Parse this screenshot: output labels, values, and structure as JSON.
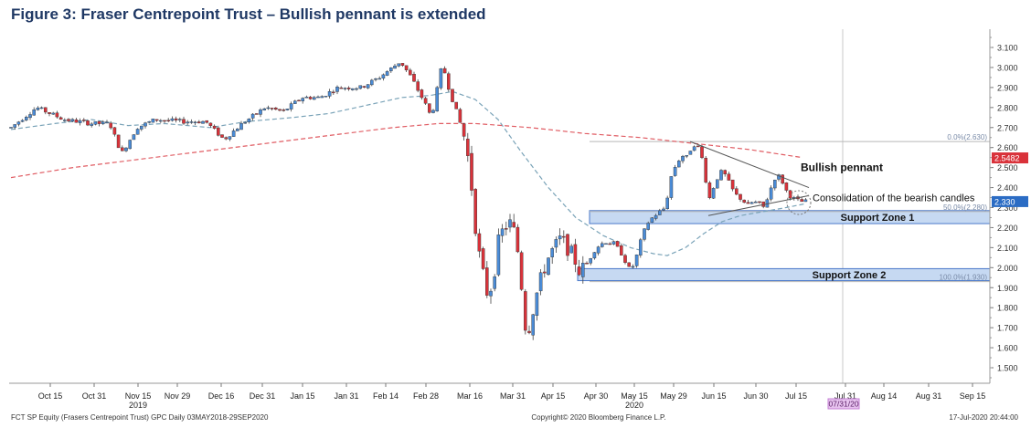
{
  "title": "Figure 3: Fraser Centrepoint Trust – Bullish pennant is extended",
  "colors": {
    "up": "#4a8bd6",
    "down": "#d9323a",
    "ma_short": "#7aa3b8",
    "ma_long": "#e05c63",
    "zone_fill": "#c6d9f2",
    "zone_edge": "#4a78c9",
    "price_tag": "#d9323a",
    "current_tag": "#2b6cc4",
    "date_tag": "#c67fd6"
  },
  "chart_data": {
    "type": "candlestick",
    "ylim": [
      1.4,
      3.18
    ],
    "y_ticks": [
      "3.100",
      "3.000",
      "2.900",
      "2.800",
      "2.700",
      "2.600",
      "2.500",
      "2.400",
      "2.300",
      "2.200",
      "2.100",
      "2.000",
      "1.900",
      "1.800",
      "1.700",
      "1.600",
      "1.500"
    ],
    "x_ticks": [
      "Oct 15",
      "Oct 31",
      "Nov 15",
      "Nov 29",
      "Dec 16",
      "Dec 31",
      "Jan 15",
      "Jan 31",
      "Feb 14",
      "Feb 28",
      "Mar 16",
      "Mar 31",
      "Apr 15",
      "Apr 30",
      "May 15",
      "May 29",
      "Jun 15",
      "Jun 30",
      "Jul 15",
      "Jul 31",
      "Aug 14",
      "Aug 31",
      "Sep 15"
    ],
    "year_labels": [
      {
        "label": "2019",
        "under": "Nov 15"
      },
      {
        "label": "2020",
        "under": "May 15"
      }
    ],
    "price_tags": {
      "ma_long_last": "2.5482",
      "last_price": "2.330"
    },
    "date_tag": "07/31/20",
    "fib_levels": [
      {
        "label": "0.0%(2.630)",
        "value": 2.63
      },
      {
        "label": "50.0%(2.280)",
        "value": 2.28
      },
      {
        "label": "100.0%(1.930)",
        "value": 1.93
      }
    ],
    "support_zones": [
      {
        "label": "Support Zone 1",
        "low": 2.22,
        "high": 2.285
      },
      {
        "label": "Support Zone 2",
        "low": 1.935,
        "high": 1.995
      }
    ],
    "annotations": [
      {
        "label": "Bullish pennant"
      },
      {
        "label": "Consolidation of the bearish candles"
      }
    ],
    "pennant": {
      "top": [
        [
          2.63,
          0
        ],
        [
          2.4,
          1
        ]
      ],
      "bottom": [
        [
          2.26,
          0
        ],
        [
          2.36,
          1
        ]
      ]
    },
    "series_close_approx": [
      2.7,
      2.75,
      2.8,
      2.78,
      2.75,
      2.72,
      2.7,
      2.6,
      2.75,
      2.78,
      2.75,
      2.73,
      2.75,
      2.7,
      2.72,
      2.8,
      2.85,
      2.88,
      2.92,
      2.9,
      2.92,
      2.95,
      3.0,
      3.05,
      2.95,
      2.9,
      2.75,
      3.05,
      2.85,
      2.7,
      2.4,
      2.0,
      1.8,
      2.2,
      2.3,
      1.65,
      1.8,
      2.0,
      2.15,
      2.05,
      2.15,
      2.1,
      2.0,
      2.2,
      2.3,
      2.5,
      2.6,
      2.4,
      2.45,
      2.35,
      2.38,
      2.4,
      2.33
    ],
    "ma_short_approx": [
      2.7,
      2.72,
      2.73,
      2.72,
      2.7,
      2.72,
      2.75,
      2.78,
      2.82,
      2.85,
      2.88,
      2.8,
      2.55,
      2.3,
      2.1,
      2.05,
      2.1,
      2.15,
      2.25,
      2.3,
      2.33
    ],
    "ma_long_approx": [
      2.45,
      2.5,
      2.55,
      2.58,
      2.62,
      2.66,
      2.7,
      2.72,
      2.72,
      2.7,
      2.68,
      2.66,
      2.64,
      2.63,
      2.6,
      2.58,
      2.5482
    ]
  },
  "footer": {
    "left": "FCT SP Equity (Frasers Centrepoint Trust) GPC  Daily 03MAY2018-29SEP2020",
    "center": "Copyright© 2020 Bloomberg Finance L.P.",
    "right": "17-Jul-2020 20:44:00"
  }
}
